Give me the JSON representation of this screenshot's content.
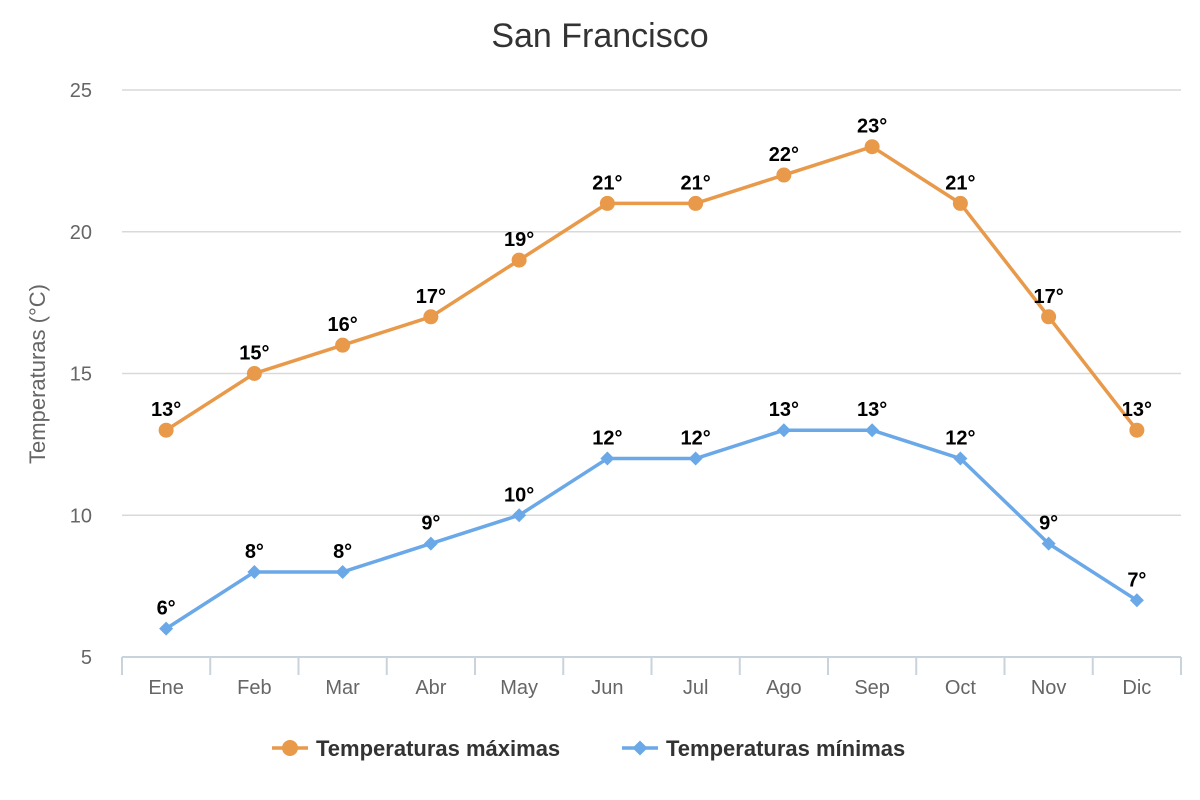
{
  "chart_data": {
    "type": "line",
    "title": "San Francisco",
    "xlabel": "",
    "ylabel": "Temperaturas (°C)",
    "categories": [
      "Ene",
      "Feb",
      "Mar",
      "Abr",
      "May",
      "Jun",
      "Jul",
      "Ago",
      "Sep",
      "Oct",
      "Nov",
      "Dic"
    ],
    "ylim": [
      5,
      25
    ],
    "yticks": [
      5,
      10,
      15,
      20,
      25
    ],
    "grid": true,
    "legend_position": "bottom",
    "series": [
      {
        "name": "Temperaturas máximas",
        "color": "#E8994A",
        "marker": "circle",
        "values": [
          13,
          15,
          16,
          17,
          19,
          21,
          21,
          22,
          23,
          21,
          17,
          13
        ],
        "labels": [
          "13°",
          "15°",
          "16°",
          "17°",
          "19°",
          "21°",
          "21°",
          "22°",
          "23°",
          "21°",
          "17°",
          "13°"
        ]
      },
      {
        "name": "Temperaturas mínimas",
        "color": "#6AA8E8",
        "marker": "diamond",
        "values": [
          6,
          8,
          8,
          9,
          10,
          12,
          12,
          13,
          13,
          12,
          9,
          7
        ],
        "labels": [
          "6°",
          "8°",
          "8°",
          "9°",
          "10°",
          "12°",
          "12°",
          "13°",
          "13°",
          "12°",
          "9°",
          "7°"
        ]
      }
    ]
  }
}
